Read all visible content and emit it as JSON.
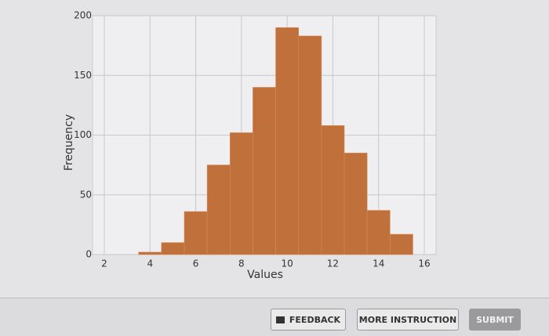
{
  "chart_data": {
    "type": "histogram",
    "x_label": "Values",
    "y_label": "Frequency",
    "bins": [
      3.5,
      4.5,
      5.5,
      6.5,
      7.5,
      8.5,
      9.5,
      10.5,
      11.5,
      12.5,
      13.5,
      14.5,
      15.5
    ],
    "counts": [
      2,
      10,
      36,
      75,
      102,
      140,
      190,
      183,
      108,
      85,
      37,
      17
    ],
    "color": "#c0703a",
    "xlim": [
      2,
      16
    ],
    "xticks": [
      2,
      4,
      6,
      8,
      10,
      12,
      14,
      16
    ],
    "ylim": [
      0,
      200
    ],
    "yticks": [
      0,
      50,
      100,
      150,
      200
    ],
    "grid": true
  },
  "buttons": [
    "FEEDBACK",
    "MORE INSTRUCTION",
    "SUBMIT"
  ]
}
